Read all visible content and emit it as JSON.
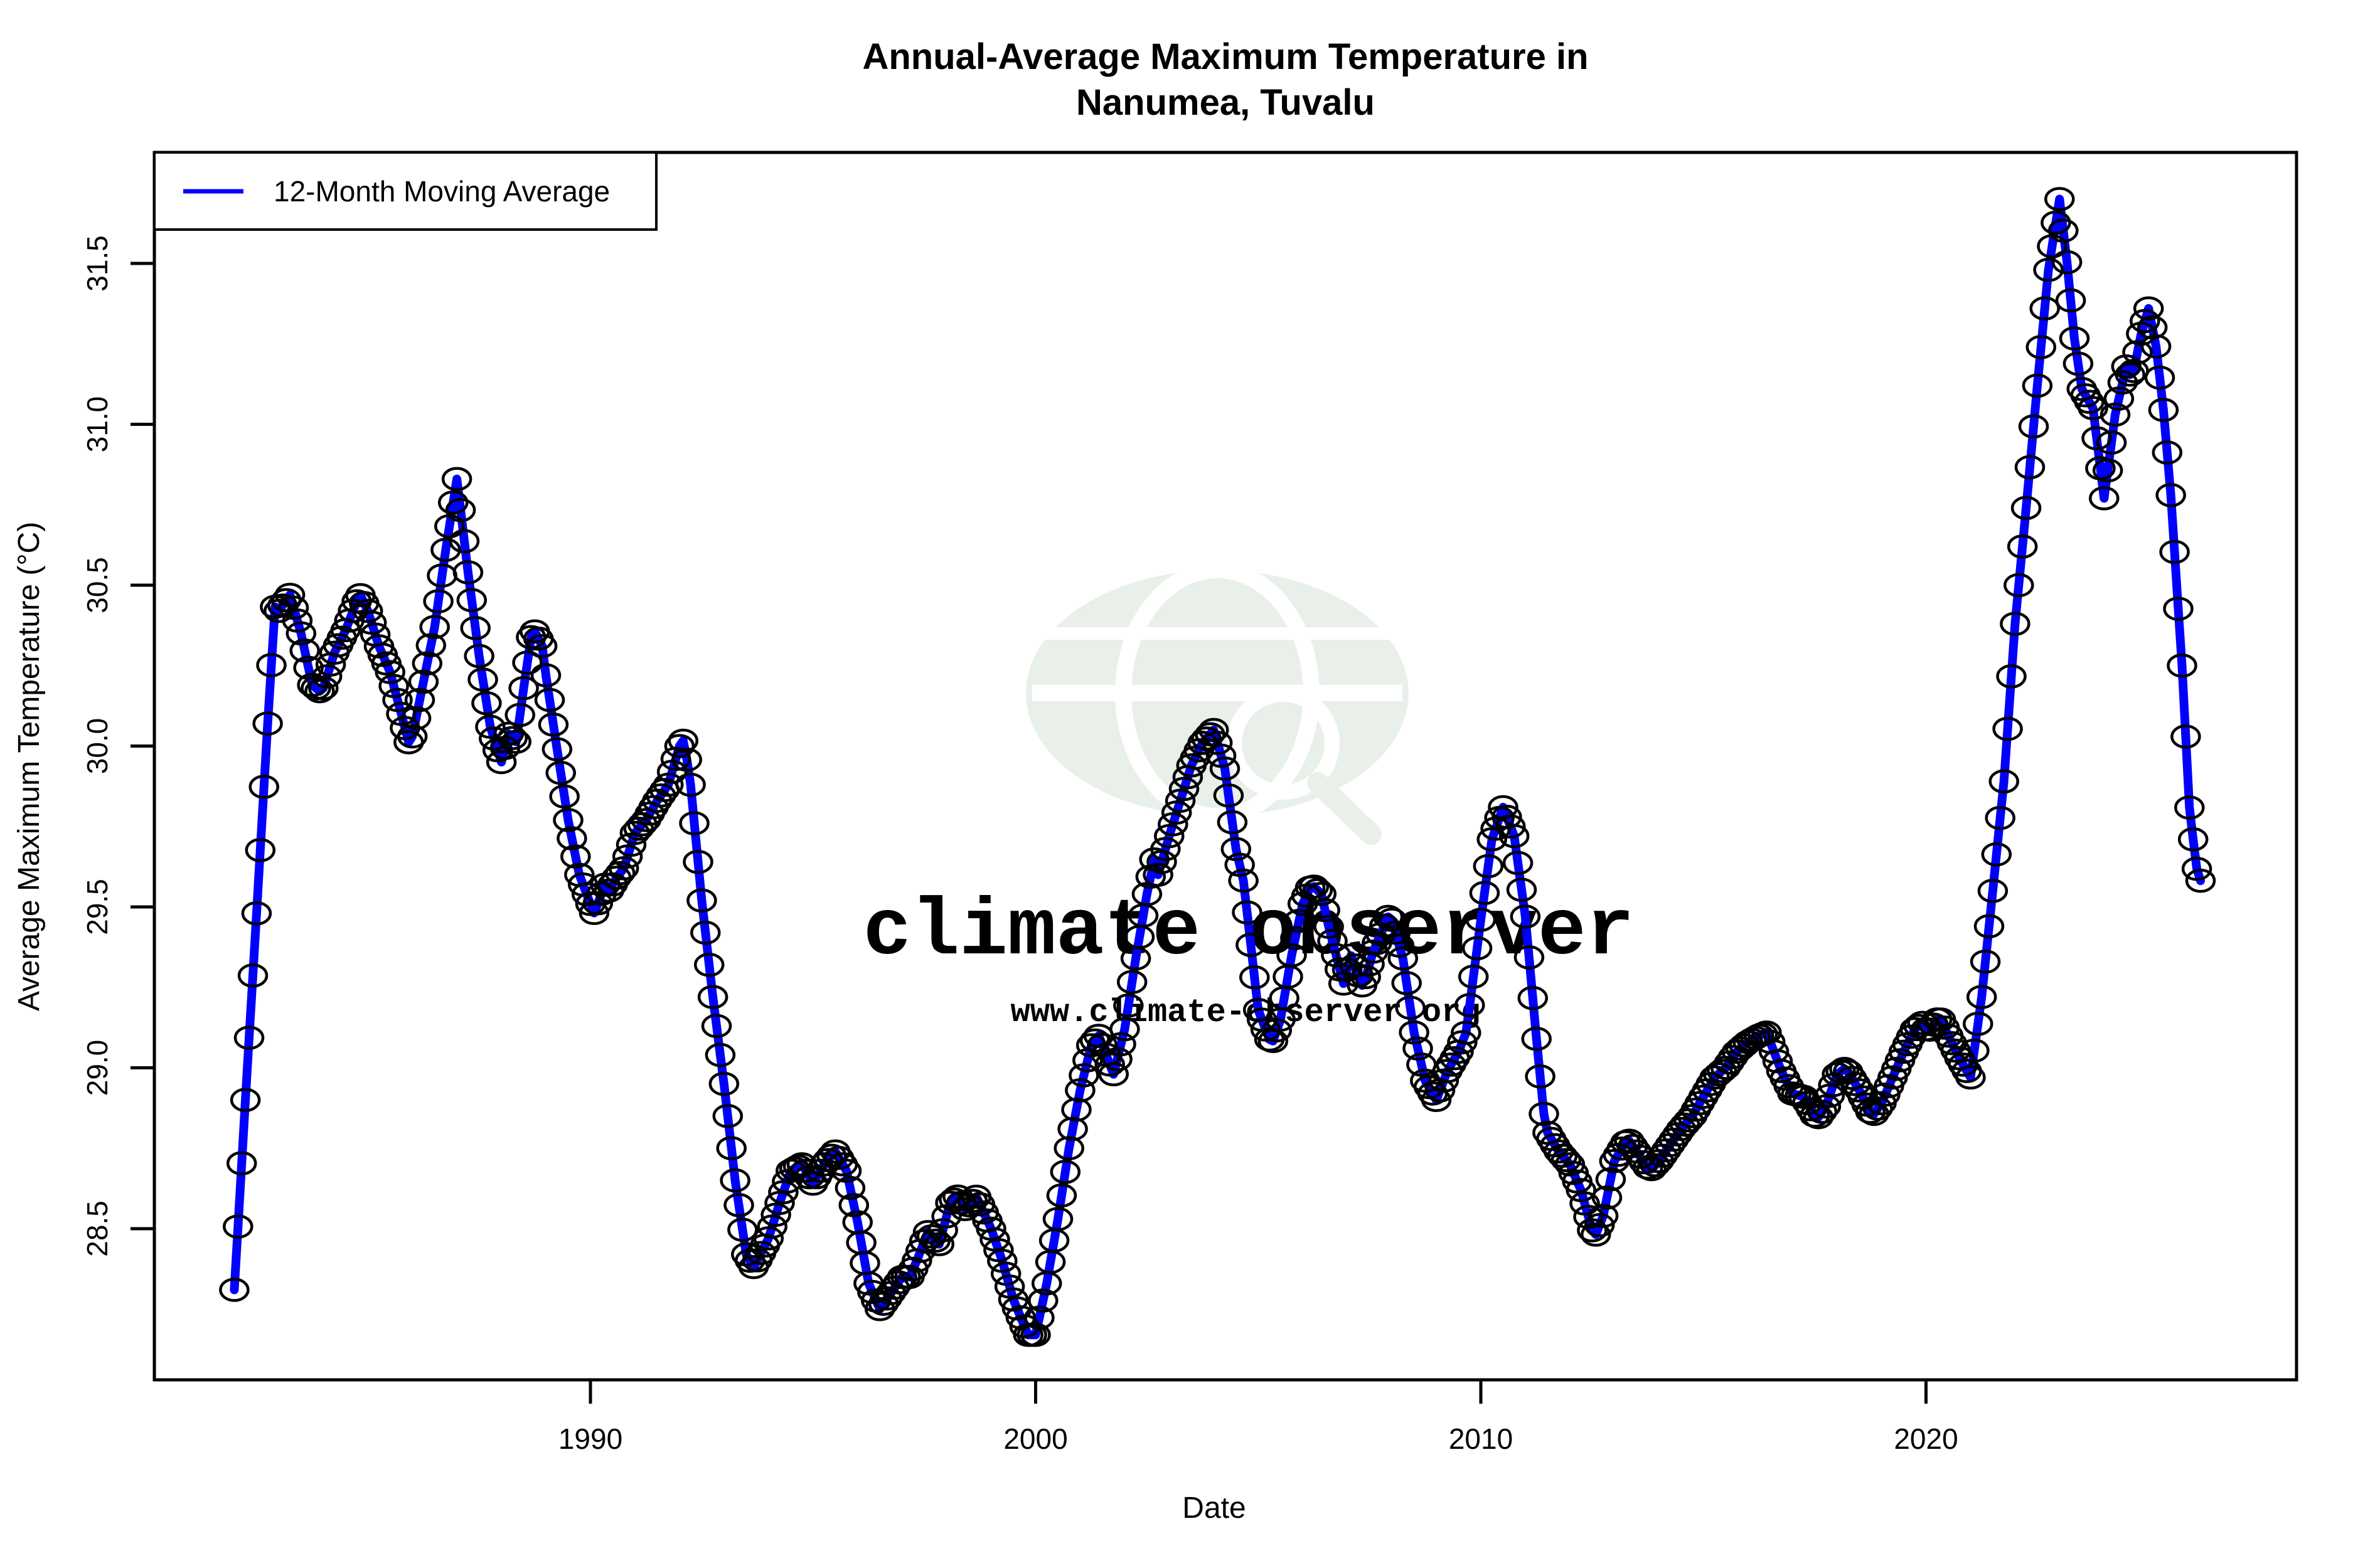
{
  "header": {
    "title_line1": "Annual-Average Maximum Temperature in",
    "title_line2": "Nanumea, Tuvalu"
  },
  "legend": {
    "label": "12-Month Moving Average",
    "position": "top-left"
  },
  "axes": {
    "x_label": "Date",
    "y_label": "Average Maximum Temperature (°C)",
    "x_tick_labels": [
      "1990",
      "2000",
      "2010",
      "2020"
    ],
    "y_tick_labels": [
      "28.5",
      "29.0",
      "29.5",
      "30.0",
      "30.5",
      "31.0",
      "31.5"
    ]
  },
  "watermark": {
    "line1": "climate observer",
    "line2": "www.climate-observer.org",
    "globe_icon": "globe-with-magnifier"
  },
  "colors": {
    "line": "#0000ff",
    "marker_stroke": "#000000",
    "axis": "#000000",
    "background": "#ffffff",
    "watermark_text": "#e0e0e0",
    "watermark_globe": "#e9efe9"
  },
  "chart_data": {
    "type": "line",
    "title": "Annual-Average Maximum Temperature in Nanumea, Tuvalu",
    "xlabel": "Date",
    "ylabel": "Average Maximum Temperature (°C)",
    "x_ticks": [
      1990,
      2000,
      2010,
      2020
    ],
    "y_ticks": [
      28.5,
      29.0,
      29.5,
      30.0,
      30.5,
      31.0,
      31.5
    ],
    "xlim": [
      1980.3,
      2027.9
    ],
    "ylim": [
      28.03,
      31.84
    ],
    "grid": false,
    "legend_position": "top-left",
    "marker": "open-circle",
    "resolution": "monthly",
    "series": [
      {
        "name": "12-Month Moving Average",
        "points": [
          [
            1982.0,
            28.31
          ],
          [
            1982.25,
            28.9
          ],
          [
            1982.5,
            29.48
          ],
          [
            1982.75,
            30.07
          ],
          [
            1982.92,
            30.44
          ],
          [
            1983.0,
            30.42
          ],
          [
            1983.25,
            30.47
          ],
          [
            1983.5,
            30.35
          ],
          [
            1983.75,
            30.19
          ],
          [
            1983.92,
            30.17
          ],
          [
            1984.0,
            30.18
          ],
          [
            1984.25,
            30.29
          ],
          [
            1984.5,
            30.36
          ],
          [
            1984.75,
            30.45
          ],
          [
            1984.83,
            30.47
          ],
          [
            1985.0,
            30.42
          ],
          [
            1985.25,
            30.31
          ],
          [
            1985.5,
            30.23
          ],
          [
            1985.75,
            30.1
          ],
          [
            1985.92,
            30.01
          ],
          [
            1986.0,
            30.03
          ],
          [
            1986.25,
            30.2
          ],
          [
            1986.5,
            30.37
          ],
          [
            1986.75,
            30.61
          ],
          [
            1987.0,
            30.83
          ],
          [
            1987.25,
            30.54
          ],
          [
            1987.5,
            30.28
          ],
          [
            1987.75,
            30.06
          ],
          [
            1988.0,
            29.95
          ],
          [
            1988.17,
            30.04
          ],
          [
            1988.33,
            30.01
          ],
          [
            1988.5,
            30.18
          ],
          [
            1988.7,
            30.37
          ],
          [
            1988.92,
            30.31
          ],
          [
            1989.0,
            30.22
          ],
          [
            1989.25,
            29.99
          ],
          [
            1989.5,
            29.77
          ],
          [
            1989.75,
            29.6
          ],
          [
            1990.08,
            29.48
          ],
          [
            1990.33,
            29.57
          ],
          [
            1990.42,
            29.55
          ],
          [
            1990.58,
            29.59
          ],
          [
            1990.75,
            29.62
          ],
          [
            1991.0,
            29.73
          ],
          [
            1991.25,
            29.77
          ],
          [
            1991.5,
            29.83
          ],
          [
            1991.75,
            29.88
          ],
          [
            1992.0,
            30.0
          ],
          [
            1992.1,
            30.02
          ],
          [
            1992.25,
            29.88
          ],
          [
            1992.5,
            29.52
          ],
          [
            1992.75,
            29.22
          ],
          [
            1993.0,
            28.95
          ],
          [
            1993.25,
            28.65
          ],
          [
            1993.5,
            28.42
          ],
          [
            1993.67,
            28.38
          ],
          [
            1994.0,
            28.47
          ],
          [
            1994.25,
            28.58
          ],
          [
            1994.5,
            28.68
          ],
          [
            1994.75,
            28.7
          ],
          [
            1995.0,
            28.64
          ],
          [
            1995.25,
            28.7
          ],
          [
            1995.5,
            28.74
          ],
          [
            1995.75,
            28.68
          ],
          [
            1996.0,
            28.52
          ],
          [
            1996.25,
            28.33
          ],
          [
            1996.5,
            28.25
          ],
          [
            1996.75,
            28.3
          ],
          [
            1997.0,
            28.35
          ],
          [
            1997.17,
            28.35
          ],
          [
            1997.33,
            28.4
          ],
          [
            1997.58,
            28.49
          ],
          [
            1997.83,
            28.45
          ],
          [
            1998.08,
            28.58
          ],
          [
            1998.25,
            28.6
          ],
          [
            1998.42,
            28.56
          ],
          [
            1998.67,
            28.6
          ],
          [
            1999.0,
            28.5
          ],
          [
            1999.25,
            28.4
          ],
          [
            1999.5,
            28.28
          ],
          [
            1999.83,
            28.17
          ],
          [
            2000.0,
            28.17
          ],
          [
            2000.25,
            28.33
          ],
          [
            2000.5,
            28.53
          ],
          [
            2000.75,
            28.75
          ],
          [
            2001.0,
            28.93
          ],
          [
            2001.25,
            29.07
          ],
          [
            2001.42,
            29.1
          ],
          [
            2001.75,
            28.98
          ],
          [
            2002.0,
            29.12
          ],
          [
            2002.25,
            29.34
          ],
          [
            2002.5,
            29.54
          ],
          [
            2002.67,
            29.65
          ],
          [
            2002.75,
            29.6
          ],
          [
            2003.0,
            29.72
          ],
          [
            2003.25,
            29.83
          ],
          [
            2003.5,
            29.94
          ],
          [
            2003.75,
            30.01
          ],
          [
            2004.0,
            30.05
          ],
          [
            2004.25,
            29.93
          ],
          [
            2004.5,
            29.68
          ],
          [
            2004.67,
            29.58
          ],
          [
            2005.0,
            29.18
          ],
          [
            2005.3,
            29.07
          ],
          [
            2005.5,
            29.15
          ],
          [
            2005.75,
            29.35
          ],
          [
            2006.0,
            29.51
          ],
          [
            2006.2,
            29.57
          ],
          [
            2006.42,
            29.54
          ],
          [
            2006.58,
            29.44
          ],
          [
            2006.92,
            29.26
          ],
          [
            2007.08,
            29.35
          ],
          [
            2007.35,
            29.25
          ],
          [
            2007.58,
            29.36
          ],
          [
            2007.92,
            29.47
          ],
          [
            2008.0,
            29.46
          ],
          [
            2008.25,
            29.34
          ],
          [
            2008.5,
            29.11
          ],
          [
            2008.75,
            28.96
          ],
          [
            2009.0,
            28.9
          ],
          [
            2009.25,
            28.99
          ],
          [
            2009.5,
            29.05
          ],
          [
            2009.67,
            29.11
          ],
          [
            2010.0,
            29.46
          ],
          [
            2010.25,
            29.71
          ],
          [
            2010.5,
            29.81
          ],
          [
            2010.75,
            29.72
          ],
          [
            2011.0,
            29.47
          ],
          [
            2011.25,
            29.09
          ],
          [
            2011.45,
            28.81
          ],
          [
            2011.75,
            28.74
          ],
          [
            2012.0,
            28.7
          ],
          [
            2012.25,
            28.62
          ],
          [
            2012.55,
            28.47
          ],
          [
            2012.75,
            28.54
          ],
          [
            2013.0,
            28.71
          ],
          [
            2013.3,
            28.78
          ],
          [
            2013.5,
            28.74
          ],
          [
            2013.8,
            28.68
          ],
          [
            2014.0,
            28.71
          ],
          [
            2014.25,
            28.76
          ],
          [
            2014.5,
            28.81
          ],
          [
            2014.75,
            28.85
          ],
          [
            2015.0,
            28.91
          ],
          [
            2015.25,
            28.97
          ],
          [
            2015.5,
            29.0
          ],
          [
            2015.75,
            29.05
          ],
          [
            2016.0,
            29.08
          ],
          [
            2016.25,
            29.1
          ],
          [
            2016.42,
            29.11
          ],
          [
            2016.75,
            28.99
          ],
          [
            2017.0,
            28.92
          ],
          [
            2017.25,
            28.91
          ],
          [
            2017.55,
            28.84
          ],
          [
            2017.75,
            28.88
          ],
          [
            2018.0,
            28.98
          ],
          [
            2018.2,
            29.0
          ],
          [
            2018.5,
            28.93
          ],
          [
            2018.8,
            28.85
          ],
          [
            2019.0,
            28.89
          ],
          [
            2019.25,
            28.97
          ],
          [
            2019.5,
            29.05
          ],
          [
            2019.75,
            29.12
          ],
          [
            2019.92,
            29.14
          ],
          [
            2020.04,
            29.11
          ],
          [
            2020.3,
            29.16
          ],
          [
            2020.5,
            29.1
          ],
          [
            2020.75,
            29.03
          ],
          [
            2021.0,
            28.97
          ],
          [
            2021.25,
            29.22
          ],
          [
            2021.5,
            29.55
          ],
          [
            2021.75,
            29.89
          ],
          [
            2022.0,
            30.38
          ],
          [
            2022.25,
            30.74
          ],
          [
            2022.5,
            31.12
          ],
          [
            2022.75,
            31.48
          ],
          [
            2023.0,
            31.7
          ],
          [
            2023.17,
            31.5
          ],
          [
            2023.33,
            31.27
          ],
          [
            2023.5,
            31.11
          ],
          [
            2023.75,
            31.05
          ],
          [
            2024.0,
            30.77
          ],
          [
            2024.25,
            31.03
          ],
          [
            2024.5,
            31.18
          ],
          [
            2024.63,
            31.14
          ],
          [
            2024.83,
            31.28
          ],
          [
            2025.0,
            31.36
          ],
          [
            2025.17,
            31.24
          ],
          [
            2025.33,
            31.05
          ],
          [
            2025.5,
            30.78
          ],
          [
            2025.75,
            30.25
          ],
          [
            2025.92,
            29.8
          ],
          [
            2026.08,
            29.62
          ],
          [
            2026.17,
            29.58
          ]
        ]
      }
    ]
  }
}
